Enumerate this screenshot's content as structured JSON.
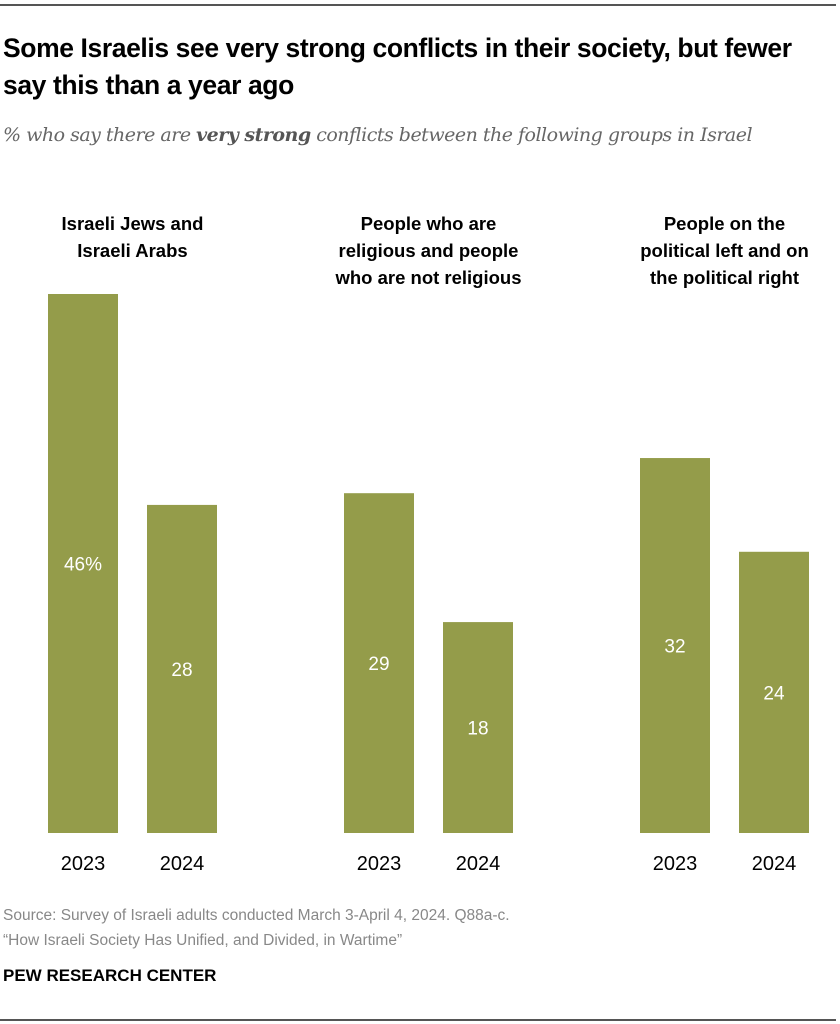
{
  "header": {
    "title": "Some Israelis see very strong conflicts in their society, but fewer say this than a year ago",
    "subtitle_pre": "% who say there are ",
    "subtitle_bold": "very strong",
    "subtitle_post": " conflicts between the following groups in Israel"
  },
  "chart_data": {
    "type": "bar",
    "groups": [
      {
        "label": [
          "Israeli Jews and",
          "Israeli Arabs"
        ],
        "categories": [
          "2023",
          "2024"
        ],
        "values": [
          46,
          28
        ],
        "value_labels": [
          "46%",
          "28"
        ]
      },
      {
        "label": [
          "People who are",
          "religious and people",
          "who are not religious"
        ],
        "categories": [
          "2023",
          "2024"
        ],
        "values": [
          29,
          18
        ],
        "value_labels": [
          "29",
          "18"
        ]
      },
      {
        "label": [
          "People on the",
          "political left and on",
          "the political right"
        ],
        "categories": [
          "2023",
          "2024"
        ],
        "values": [
          32,
          24
        ],
        "value_labels": [
          "32",
          "24"
        ]
      }
    ],
    "ylim": [
      0,
      46
    ],
    "bar_color": "#949c4a",
    "grid": false
  },
  "footer": {
    "source": "Source: Survey of Israeli adults conducted March 3-April 4, 2024. Q88a-c.",
    "report": "“How Israeli Society Has Unified, and Divided, in Wartime”",
    "brand": "PEW RESEARCH CENTER"
  }
}
